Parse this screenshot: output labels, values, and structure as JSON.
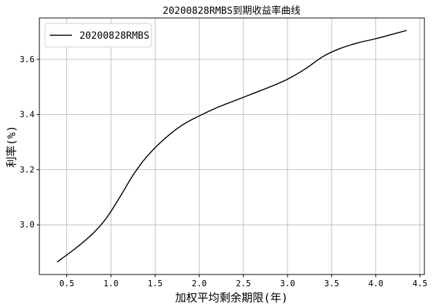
{
  "chart_data": {
    "type": "line",
    "title": "20200828RMBS到期收益率曲线",
    "xlabel": "加权平均剩余期限(年)",
    "ylabel": "利率(%)",
    "xlim": [
      0.19,
      4.55
    ],
    "ylim": [
      2.82,
      3.75
    ],
    "xticks": [
      0.5,
      1.0,
      1.5,
      2.0,
      2.5,
      3.0,
      3.5,
      4.0,
      4.5
    ],
    "yticks": [
      3.0,
      3.2,
      3.4,
      3.6
    ],
    "xtick_labels": [
      "0.5",
      "1.0",
      "1.5",
      "2.0",
      "2.5",
      "3.0",
      "3.5",
      "4.0",
      "4.5"
    ],
    "ytick_labels": [
      "3.0",
      "3.2",
      "3.4",
      "3.6"
    ],
    "grid": true,
    "legend_position": "top-left",
    "series": [
      {
        "name": "20200828RMBS",
        "color": "#000000",
        "x": [
          0.39,
          0.6,
          0.8,
          0.95,
          1.1,
          1.25,
          1.4,
          1.6,
          1.8,
          2.0,
          2.2,
          2.4,
          2.6,
          2.8,
          3.0,
          3.2,
          3.4,
          3.6,
          3.8,
          4.0,
          4.2,
          4.35
        ],
        "y": [
          2.865,
          2.915,
          2.97,
          3.025,
          3.1,
          3.18,
          3.245,
          3.31,
          3.36,
          3.395,
          3.425,
          3.45,
          3.475,
          3.5,
          3.528,
          3.565,
          3.61,
          3.64,
          3.66,
          3.675,
          3.692,
          3.705
        ]
      }
    ]
  }
}
